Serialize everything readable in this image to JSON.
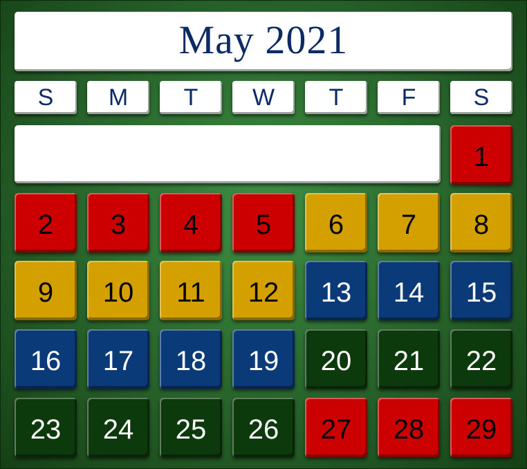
{
  "calendar": {
    "title": "May 2021",
    "weekdays": [
      "S",
      "M",
      "T",
      "W",
      "T",
      "F",
      "S"
    ],
    "colors": {
      "red": "#cc0000",
      "gold": "#d4a000",
      "blue": "#0b3a78",
      "green": "#0d3a0d",
      "board": "#2b6a2f",
      "title_text": "#0b2a66"
    },
    "weeks": [
      [
        {
          "day": "1",
          "color": "red"
        }
      ],
      [
        {
          "day": "2",
          "color": "red"
        },
        {
          "day": "3",
          "color": "red"
        },
        {
          "day": "4",
          "color": "red"
        },
        {
          "day": "5",
          "color": "red"
        },
        {
          "day": "6",
          "color": "gold"
        },
        {
          "day": "7",
          "color": "gold"
        },
        {
          "day": "8",
          "color": "gold"
        }
      ],
      [
        {
          "day": "9",
          "color": "gold"
        },
        {
          "day": "10",
          "color": "gold"
        },
        {
          "day": "11",
          "color": "gold"
        },
        {
          "day": "12",
          "color": "gold"
        },
        {
          "day": "13",
          "color": "blue"
        },
        {
          "day": "14",
          "color": "blue"
        },
        {
          "day": "15",
          "color": "blue"
        }
      ],
      [
        {
          "day": "16",
          "color": "blue"
        },
        {
          "day": "17",
          "color": "blue"
        },
        {
          "day": "18",
          "color": "blue"
        },
        {
          "day": "19",
          "color": "blue"
        },
        {
          "day": "20",
          "color": "green"
        },
        {
          "day": "21",
          "color": "green"
        },
        {
          "day": "22",
          "color": "green"
        }
      ],
      [
        {
          "day": "23",
          "color": "green"
        },
        {
          "day": "24",
          "color": "green"
        },
        {
          "day": "25",
          "color": "green"
        },
        {
          "day": "26",
          "color": "green"
        },
        {
          "day": "27",
          "color": "red"
        },
        {
          "day": "28",
          "color": "red"
        },
        {
          "day": "29",
          "color": "red"
        }
      ]
    ]
  }
}
